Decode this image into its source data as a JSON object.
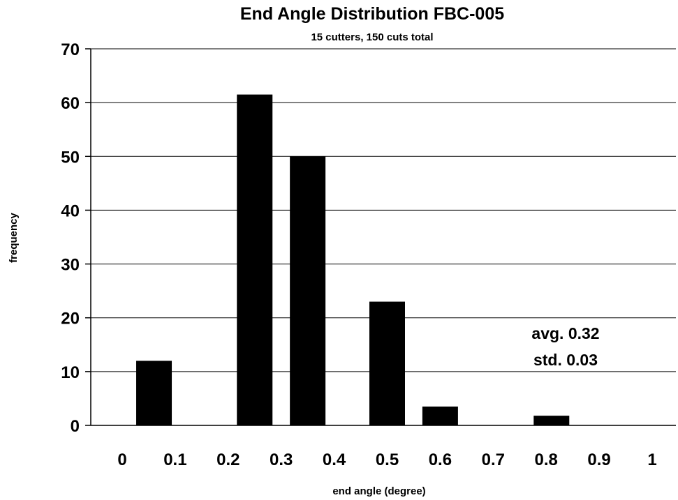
{
  "chart_data": {
    "type": "bar",
    "title": "End Angle Distribution FBC-005",
    "subtitle": "15 cutters, 150 cuts total",
    "xlabel": "end angle  (degree)",
    "ylabel": "frequency",
    "ylim": [
      0,
      70
    ],
    "xlim": [
      0,
      1
    ],
    "y_ticks": [
      0,
      10,
      20,
      30,
      40,
      50,
      60,
      70
    ],
    "x_ticks": [
      "0",
      "0.1",
      "0.2",
      "0.3",
      "0.4",
      "0.5",
      "0.6",
      "0.7",
      "0.8",
      "0.9",
      "1"
    ],
    "grid": true,
    "bar_color": "#000000",
    "bars": [
      {
        "x": 0.06,
        "value": 12
      },
      {
        "x": 0.25,
        "value": 61.5
      },
      {
        "x": 0.35,
        "value": 50
      },
      {
        "x": 0.5,
        "value": 23
      },
      {
        "x": 0.6,
        "value": 3.5
      },
      {
        "x": 0.81,
        "value": 1.8
      }
    ],
    "annotations": [
      "avg. 0.32",
      "std. 0.03"
    ]
  }
}
